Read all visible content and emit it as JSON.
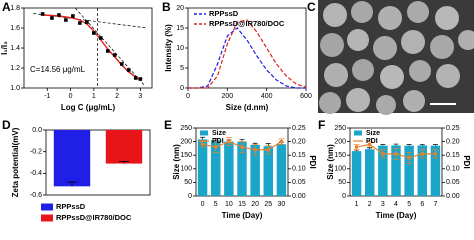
{
  "chart_data": [
    {
      "type": "scatter",
      "panel_label": "A",
      "xlabel": "Log C (μg/mL)",
      "ylabel": "I₁/I₃",
      "annotation": "C=14.56 μg/mL",
      "x": [
        -1.2,
        -0.8,
        -0.5,
        -0.2,
        0.1,
        0.4,
        0.7,
        1.0,
        1.3,
        1.6,
        1.9,
        2.2,
        2.5,
        2.8,
        3.0
      ],
      "values": [
        1.74,
        1.7,
        1.73,
        1.68,
        1.72,
        1.65,
        1.66,
        1.55,
        1.5,
        1.37,
        1.33,
        1.24,
        1.18,
        1.1,
        1.09
      ],
      "color": "#000000",
      "fit": {
        "color": "#e0201b",
        "values": [
          1.73,
          1.725,
          1.72,
          1.71,
          1.7,
          1.68,
          1.64,
          1.57,
          1.48,
          1.39,
          1.31,
          1.23,
          1.16,
          1.11,
          1.08
        ]
      },
      "xlim": [
        -2,
        3.5
      ],
      "xticks": [
        -1,
        0,
        1,
        2,
        3
      ],
      "ylim": [
        1.0,
        1.8
      ],
      "yticks": [
        {
          "value": 1,
          "label": "1.0"
        },
        1.2,
        1.4,
        1.6,
        1.8
      ]
    },
    {
      "type": "line",
      "panel_label": "B",
      "xlabel": "Size (d.nm)",
      "ylabel": "Intensity (%)",
      "x": [
        0,
        50,
        100,
        150,
        200,
        250,
        300,
        350,
        400,
        450,
        500,
        550,
        600
      ],
      "series": [
        {
          "name": "RPPssD",
          "color": "#1f1fe8",
          "values": [
            0,
            0,
            0.5,
            6,
            13,
            15,
            12,
            8,
            4.5,
            2,
            0.5,
            0,
            0
          ]
        },
        {
          "name": "RPPssD@IR780/DOC",
          "color": "#e0201b",
          "values": [
            0,
            0,
            0,
            3,
            11,
            16.5,
            17,
            14,
            10,
            6,
            3,
            1,
            0.2
          ]
        }
      ],
      "xlim": [
        0,
        600
      ],
      "xticks": [
        0,
        200,
        400,
        600
      ],
      "ylim": [
        0,
        20
      ],
      "yticks": [
        0,
        5,
        10,
        15,
        20
      ]
    },
    {
      "type": "image",
      "panel_label": "C"
    },
    {
      "type": "bar",
      "panel_label": "D",
      "ylabel": "Zeta potential(mV)",
      "series": [
        {
          "name": "RPPssD",
          "color": "#1f1fe8",
          "values": [
            -0.52
          ],
          "errors": [
            0.04
          ]
        },
        {
          "name": "RPPssD@IR780/DOC",
          "color": "#e8151b",
          "values": [
            -0.31
          ],
          "errors": [
            0.02
          ]
        }
      ],
      "ylim": [
        -0.6,
        0
      ],
      "yticks": [
        {
          "value": 0,
          "label": "0.0"
        },
        -0.2,
        -0.4,
        -0.6
      ]
    },
    {
      "type": "combo",
      "panel_label": "E",
      "xlabel": "Time (Day)",
      "ylabel": "Size (nm)",
      "y2label": "PDI",
      "categories": [
        "0",
        "5",
        "10",
        "15",
        "20",
        "25",
        "30"
      ],
      "series": [
        {
          "name": "Size",
          "color": "#1aa5c9",
          "values": [
            208,
            205,
            200,
            200,
            188,
            183,
            190
          ],
          "errors": [
            8,
            6,
            6,
            8,
            6,
            10,
            8
          ]
        },
        {
          "name": "PDI",
          "color": "#e8822a",
          "axis": "y2",
          "values": [
            0.19,
            0.18,
            0.2,
            0.18,
            0.17,
            0.17,
            0.2
          ],
          "errors": [
            0.01,
            0.02,
            0.015,
            0.02,
            0.02,
            0.015,
            0.01
          ]
        }
      ],
      "ylim": [
        0,
        250
      ],
      "yticks": [
        0,
        50,
        100,
        150,
        200,
        250
      ],
      "y2lim": [
        0,
        0.25
      ],
      "y2ticks": [
        {
          "value": 0,
          "label": "0.00"
        },
        0.05,
        {
          "value": 0.1,
          "label": "0.10"
        },
        0.15,
        {
          "value": 0.2,
          "label": "0.20"
        },
        0.25
      ]
    },
    {
      "type": "combo",
      "panel_label": "F",
      "xlabel": "Time (Day)",
      "ylabel": "Size (nm)",
      "y2label": "PDI",
      "categories": [
        "1",
        "2",
        "3",
        "4",
        "5",
        "6",
        "7"
      ],
      "series": [
        {
          "name": "Size",
          "color": "#1aa5c9",
          "values": [
            165,
            172,
            185,
            186,
            185,
            186,
            185
          ],
          "errors": [
            4,
            5,
            4,
            5,
            4,
            4,
            4
          ]
        },
        {
          "name": "PDI",
          "color": "#e8822a",
          "axis": "y2",
          "values": [
            0.18,
            0.19,
            0.155,
            0.155,
            0.14,
            0.155,
            0.155
          ],
          "errors": [
            0.01,
            0.01,
            0.015,
            0.02,
            0.02,
            0.015,
            0.015
          ]
        }
      ],
      "ylim": [
        0,
        250
      ],
      "yticks": [
        0,
        50,
        100,
        150,
        200,
        250
      ],
      "y2lim": [
        0,
        0.25
      ],
      "y2ticks": [
        {
          "value": 0,
          "label": "0.00"
        },
        0.05,
        {
          "value": 0.1,
          "label": "0.10"
        },
        0.15,
        {
          "value": 0.2,
          "label": "0.20"
        },
        0.25
      ]
    }
  ]
}
